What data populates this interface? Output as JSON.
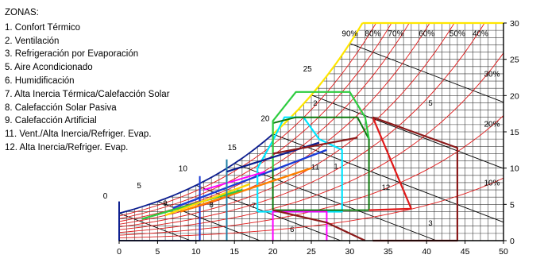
{
  "legend": {
    "title": "ZONAS:",
    "items": [
      "1. Confort Térmico",
      "2. Ventilación",
      "3. Refrigeración por Evaporación",
      "5. Aire Acondicionado",
      "6. Humidificación",
      "7. Alta Inercia Térmica/Calefacción Solar",
      "8. Calefacción Solar Pasiva",
      "9. Calefacción Artificial",
      "11. Vent./Alta Inercia/Refriger. Evap.",
      "12. Alta Inercia/Refriger. Evap."
    ]
  },
  "chart_data": {
    "type": "psychrometric",
    "x_ticks": [
      "0",
      "5",
      "10",
      "15",
      "20",
      "25",
      "30",
      "35",
      "40",
      "45",
      "50"
    ],
    "y_ticks": [
      "0",
      "5",
      "10",
      "15",
      "20",
      "25",
      "30"
    ],
    "xlim": [
      0,
      50
    ],
    "ylim": [
      0,
      30
    ],
    "rh_labels": [
      "90%",
      "80%",
      "70%",
      "60%",
      "50%",
      "40%",
      "30%",
      "20%",
      "10%"
    ],
    "rh_values": [
      90,
      80,
      70,
      60,
      50,
      40,
      30,
      20,
      10
    ],
    "wb_labels": [
      "0",
      "5",
      "10",
      "15",
      "20",
      "25"
    ],
    "wb_values": [
      0,
      5,
      10,
      15,
      20,
      25
    ],
    "zone_labels": [
      "1",
      "2",
      "3",
      "5",
      "6",
      "7",
      "8",
      "9",
      "11",
      "12"
    ],
    "grid": true,
    "zone_colors": {
      "confort": "#0f7a0f",
      "ventilacion": "#2ecc40",
      "refrigeracion": "#1a1a1a",
      "aire": "#e01b1b",
      "humidificacion": "#ff00ff",
      "inercia": "#00e5ff",
      "solar_pasiva": "#1a3bd6",
      "artificial": "#0b1d8f",
      "vent_inercia_evap": "#ff7f00",
      "inercia_evap": "#8b1a1a",
      "envelope": "#ffe600",
      "rh_curves": "#e01b1b"
    }
  }
}
